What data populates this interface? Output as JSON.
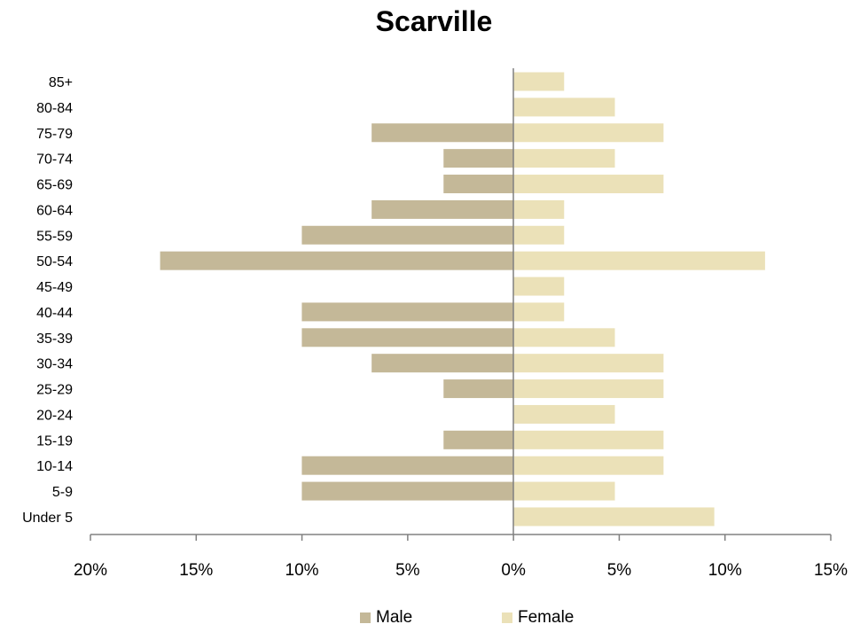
{
  "chart_data": {
    "type": "bar",
    "orientation": "horizontal",
    "title": "Scarville",
    "categories": [
      "85+",
      "80-84",
      "75-79",
      "70-74",
      "65-69",
      "60-64",
      "55-59",
      "50-54",
      "45-49",
      "40-44",
      "35-39",
      "30-34",
      "25-29",
      "20-24",
      "15-19",
      "10-14",
      "5-9",
      "Under 5"
    ],
    "series": [
      {
        "name": "Male",
        "color": "#c4b898",
        "direction": "left",
        "values": [
          0,
          0,
          6.7,
          3.3,
          3.3,
          6.7,
          10.0,
          16.7,
          0,
          10.0,
          10.0,
          6.7,
          3.3,
          0,
          3.3,
          10.0,
          10.0,
          0
        ]
      },
      {
        "name": "Female",
        "color": "#ebe1b8",
        "direction": "right",
        "values": [
          2.4,
          4.8,
          7.1,
          4.8,
          7.1,
          2.4,
          2.4,
          11.9,
          2.4,
          2.4,
          4.8,
          7.1,
          7.1,
          4.8,
          7.1,
          7.1,
          4.8,
          9.5
        ]
      }
    ],
    "x_ticks": [
      "20%",
      "15%",
      "10%",
      "5%",
      "0%",
      "5%",
      "10%",
      "15%"
    ],
    "xlim": [
      -20,
      15
    ],
    "legend_position": "bottom",
    "grid": false
  }
}
